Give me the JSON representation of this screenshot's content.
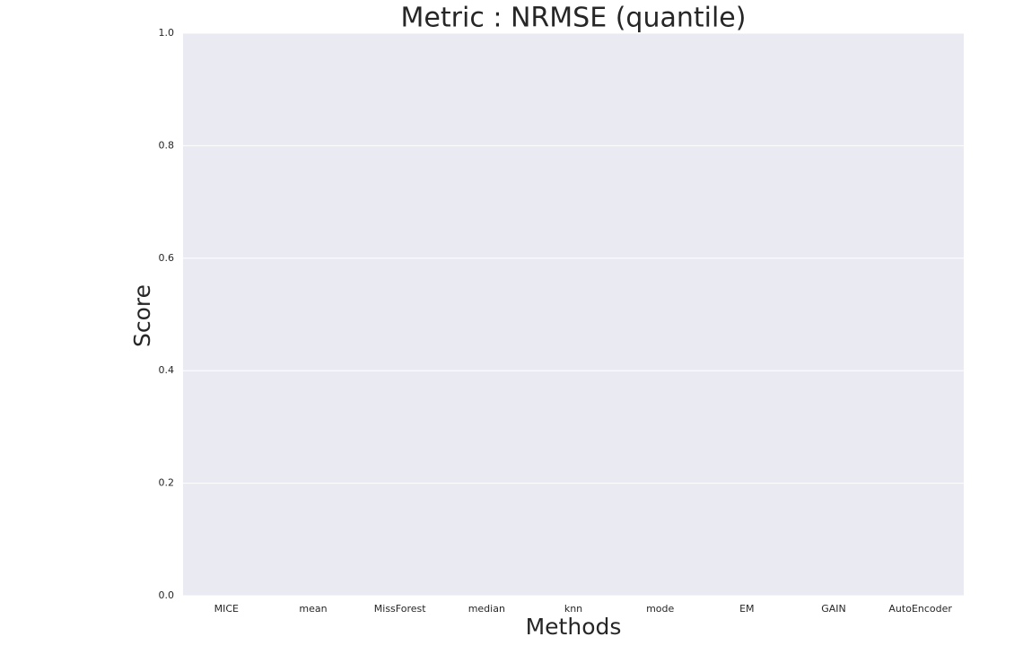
{
  "chart_data": {
    "type": "bar",
    "title": "Metric : NRMSE (quantile)",
    "x_label": "Methods",
    "y_label": "Score",
    "categories": [
      "MICE",
      "mean",
      "MissForest",
      "median",
      "knn",
      "mode",
      "EM",
      "GAIN",
      "AutoEncoder"
    ],
    "ylim": [
      0,
      1
    ],
    "yticks": [
      {
        "value": 0,
        "label": "0.0"
      },
      0.2,
      0.4,
      0.6,
      0.8,
      {
        "value": 1,
        "label": "1.0"
      }
    ],
    "grid": true,
    "background": "#eaeaf2"
  }
}
